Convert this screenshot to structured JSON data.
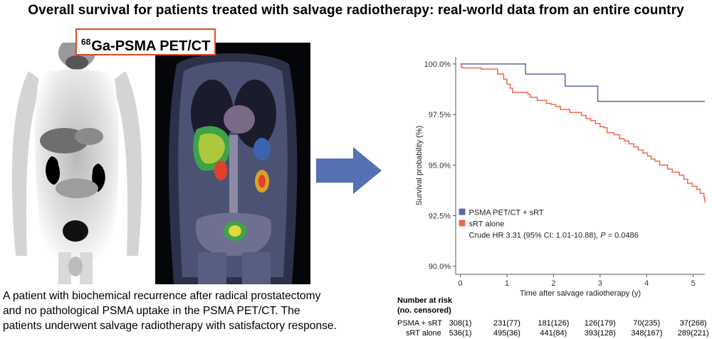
{
  "title": "Overall survival for patients treated with salvage radiotherapy: real-world data from an entire country",
  "scan_label": {
    "superscript": "68",
    "text": "Ga-PSMA PET/CT"
  },
  "caption": [
    "A patient with biochemical recurrence after radical prostatectomy",
    "and no pathological PSMA uptake in the PSMA PET/CT. The",
    "patients underwent salvage radiotherapy with satisfactory response."
  ],
  "colors": {
    "psma": "#5b6aa3",
    "srt": "#e96b4c",
    "arrow": "#5670b4",
    "label_border": "#e24a26"
  },
  "chart_data": {
    "type": "line",
    "title": "",
    "xlabel": "Time after salvage radiotherapy (y)",
    "ylabel": "Survival probability (%)",
    "xlim": [
      -0.1,
      5.25
    ],
    "ylim": [
      89.6,
      100.35
    ],
    "xticks": [
      0,
      1,
      2,
      3,
      4,
      5
    ],
    "yticks": [
      90,
      92.5,
      95,
      97.5,
      100
    ],
    "ytick_labels": [
      "90.0%",
      "92.5%",
      "95.0%",
      "97.5%",
      "100.0%"
    ],
    "grid": false,
    "legend_position": "bottom-left",
    "series": [
      {
        "name": "PSMA PET/CT + sRT",
        "color": "#5b6aa3",
        "x": [
          0,
          1.4,
          2.25,
          2.95,
          5.25
        ],
        "y": [
          100,
          99.5,
          98.9,
          98.15,
          98.15
        ]
      },
      {
        "name": "sRT alone",
        "color": "#e96b4c",
        "x": [
          0,
          0.02,
          0.05,
          0.45,
          0.8,
          0.93,
          1.0,
          1.07,
          1.12,
          1.45,
          1.5,
          1.58,
          1.65,
          1.75,
          1.85,
          1.95,
          2.05,
          2.15,
          2.35,
          2.6,
          2.7,
          2.8,
          2.9,
          3.0,
          3.08,
          3.15,
          3.3,
          3.42,
          3.52,
          3.62,
          3.72,
          3.82,
          3.92,
          4.02,
          4.1,
          4.18,
          4.28,
          4.45,
          4.55,
          4.7,
          4.8,
          4.88,
          4.98,
          5.08,
          5.15,
          5.23,
          5.25
        ],
        "y": [
          100,
          99.85,
          99.8,
          99.75,
          99.5,
          99.25,
          99.0,
          98.8,
          98.6,
          98.5,
          98.35,
          98.35,
          98.2,
          98.2,
          98.05,
          98.0,
          97.9,
          97.75,
          97.6,
          97.45,
          97.3,
          97.2,
          97.05,
          96.9,
          96.85,
          96.6,
          96.5,
          96.3,
          96.2,
          96.05,
          95.9,
          95.75,
          95.6,
          95.45,
          95.3,
          95.2,
          95.0,
          94.8,
          94.65,
          94.5,
          94.3,
          94.1,
          93.95,
          93.8,
          93.6,
          93.4,
          93.15
        ]
      }
    ],
    "annotation_prefix": "Crude HR 3.31 (95% CI: 1.01-10.88),",
    "annotation_p": "P",
    "annotation_suffix": "= 0.0486"
  },
  "risk_table": {
    "title_line1": "Number at risk",
    "title_line2": "(no. censored)",
    "times": [
      0,
      1,
      2,
      3,
      4,
      5
    ],
    "rows": [
      {
        "label": "PSMA + sRT",
        "values": [
          "308(1)",
          "231(77)",
          "181(126)",
          "126(179)",
          "70(235)",
          "37(268)"
        ]
      },
      {
        "label": "sRT alone",
        "values": [
          "536(1)",
          "495(36)",
          "441(84)",
          "393(128)",
          "348(167)",
          "289(221)"
        ]
      }
    ]
  }
}
